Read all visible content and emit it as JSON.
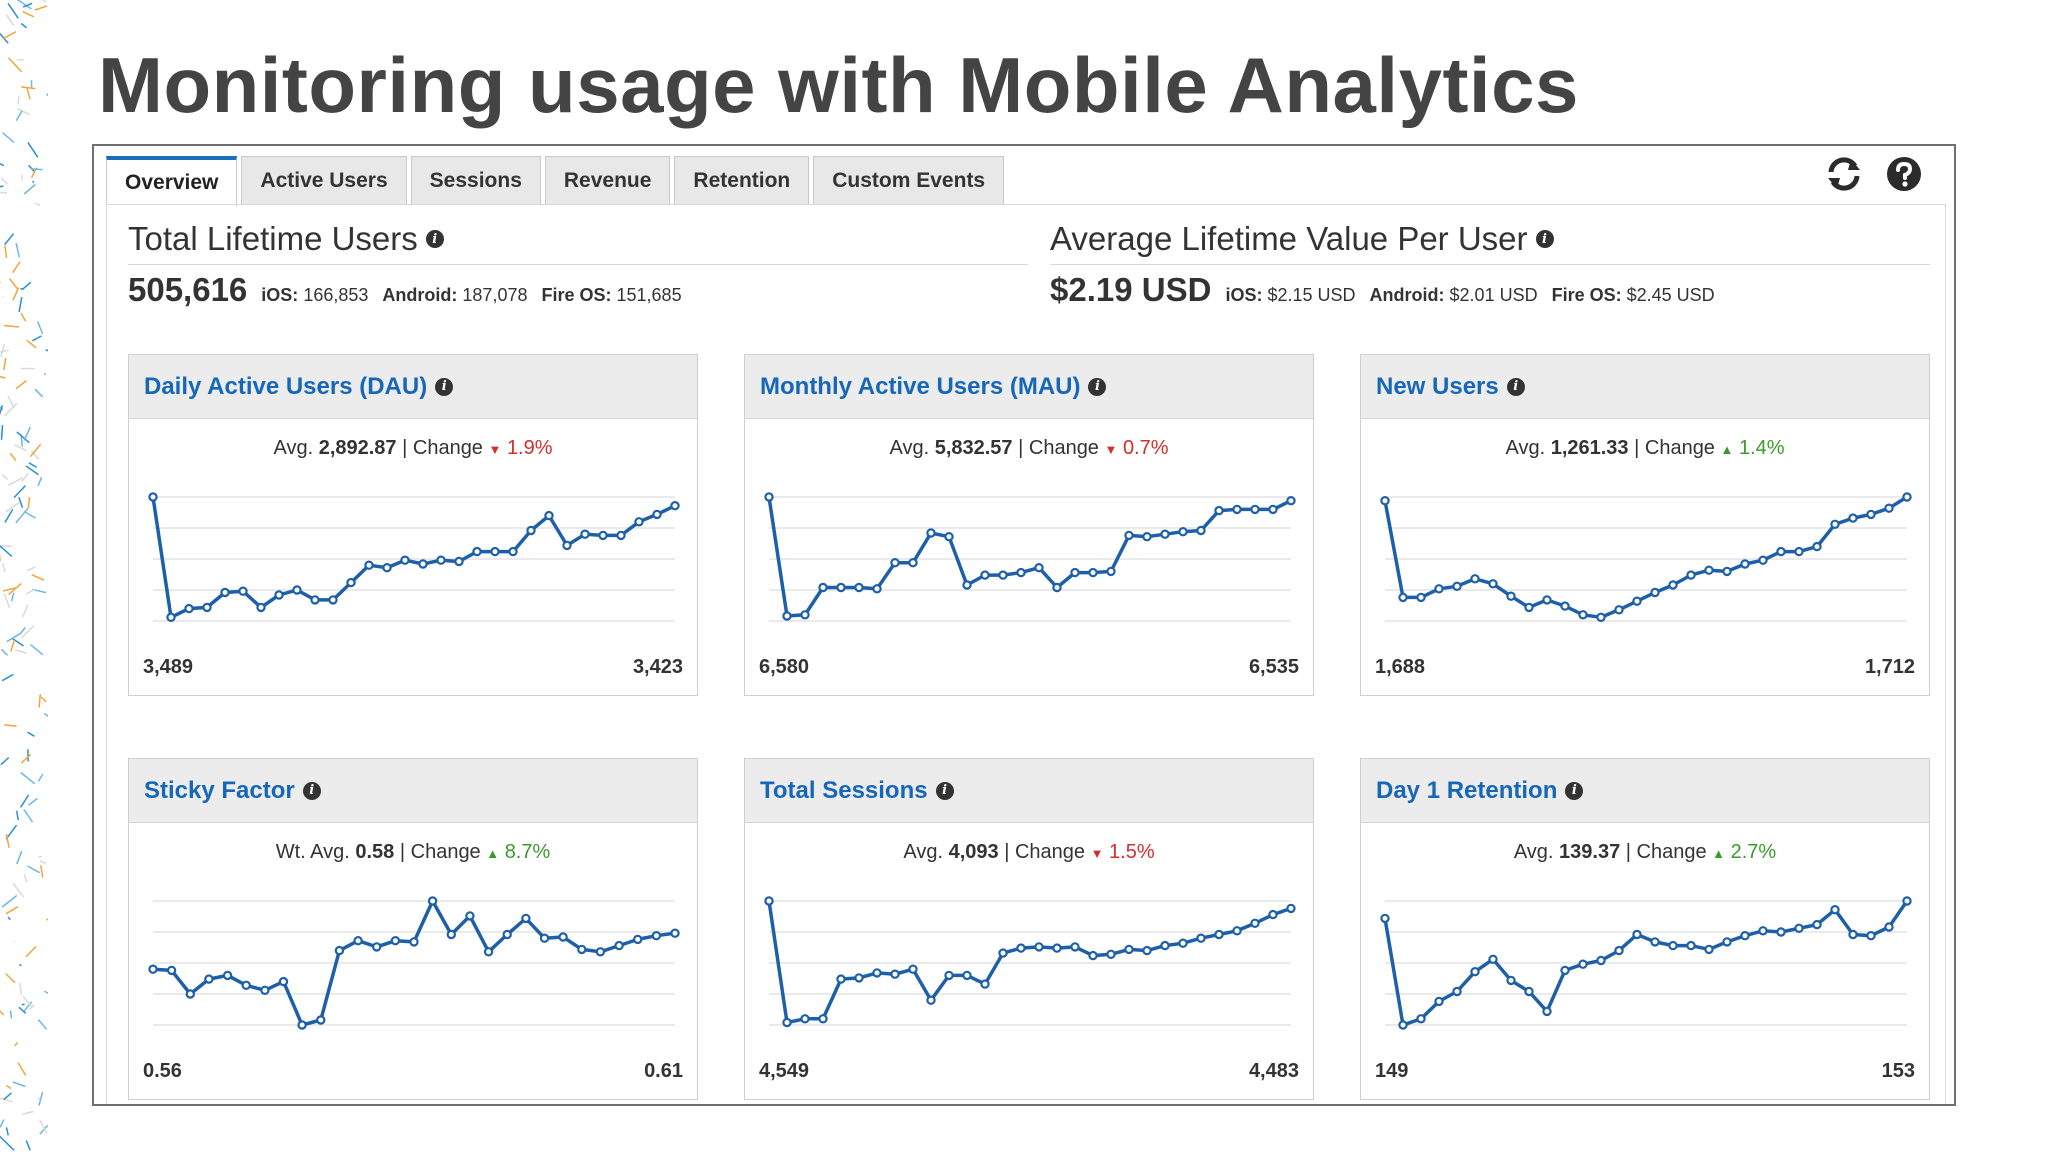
{
  "slide_title": "Monitoring usage with Mobile Analytics",
  "tabs": [
    {
      "label": "Overview",
      "active": true
    },
    {
      "label": "Active Users",
      "active": false
    },
    {
      "label": "Sessions",
      "active": false
    },
    {
      "label": "Revenue",
      "active": false
    },
    {
      "label": "Retention",
      "active": false
    },
    {
      "label": "Custom Events",
      "active": false
    }
  ],
  "icons": {
    "refresh": "refresh-icon",
    "help": "help-icon",
    "info": "info-icon"
  },
  "colors": {
    "accent": "#1a6fba",
    "link": "#1767b8",
    "up": "#3b9a2c",
    "down": "#d12e2e",
    "line": "#1d5fa8"
  },
  "summary": {
    "lifetime_users": {
      "title": "Total Lifetime Users",
      "value": "505,616",
      "ios_label": "iOS:",
      "ios_value": "166,853",
      "android_label": "Android:",
      "android_value": "187,078",
      "fire_label": "Fire OS:",
      "fire_value": "151,685"
    },
    "lifetime_value": {
      "title": "Average Lifetime Value Per User",
      "value": "$2.19 USD",
      "ios_label": "iOS:",
      "ios_value": "$2.15 USD",
      "android_label": "Android:",
      "android_value": "$2.01 USD",
      "fire_label": "Fire OS:",
      "fire_value": "$2.45 USD"
    }
  },
  "cards": [
    {
      "title": "Daily Active Users (DAU)",
      "avg_label": "Avg.",
      "avg": "2,892.87",
      "change_label": "Change",
      "direction": "down",
      "arrow": "▼",
      "change": "1.9%",
      "start": "3,489",
      "end": "3,423"
    },
    {
      "title": "Monthly Active Users (MAU)",
      "avg_label": "Avg.",
      "avg": "5,832.57",
      "change_label": "Change",
      "direction": "down",
      "arrow": "▼",
      "change": "0.7%",
      "start": "6,580",
      "end": "6,535"
    },
    {
      "title": "New Users",
      "avg_label": "Avg.",
      "avg": "1,261.33",
      "change_label": "Change",
      "direction": "up",
      "arrow": "▲",
      "change": "1.4%",
      "start": "1,688",
      "end": "1,712"
    },
    {
      "title": "Sticky Factor",
      "avg_label": "Wt. Avg.",
      "avg": "0.58",
      "change_label": "Change",
      "direction": "up",
      "arrow": "▲",
      "change": "8.7%",
      "start": "0.56",
      "end": "0.61"
    },
    {
      "title": "Total Sessions",
      "avg_label": "Avg.",
      "avg": "4,093",
      "change_label": "Change",
      "direction": "down",
      "arrow": "▼",
      "change": "1.5%",
      "start": "4,549",
      "end": "4,483"
    },
    {
      "title": "Day 1 Retention",
      "avg_label": "Avg.",
      "avg": "139.37",
      "change_label": "Change",
      "direction": "up",
      "arrow": "▲",
      "change": "2.7%",
      "start": "149",
      "end": "153"
    }
  ],
  "sparklines": [
    [
      1.0,
      0.03,
      0.1,
      0.11,
      0.23,
      0.24,
      0.11,
      0.21,
      0.25,
      0.17,
      0.17,
      0.31,
      0.45,
      0.43,
      0.49,
      0.46,
      0.49,
      0.48,
      0.56,
      0.56,
      0.56,
      0.73,
      0.85,
      0.61,
      0.7,
      0.69,
      0.69,
      0.8,
      0.86,
      0.93
    ],
    [
      1.0,
      0.04,
      0.05,
      0.27,
      0.27,
      0.27,
      0.26,
      0.47,
      0.47,
      0.71,
      0.68,
      0.29,
      0.37,
      0.37,
      0.39,
      0.43,
      0.27,
      0.39,
      0.39,
      0.4,
      0.69,
      0.68,
      0.7,
      0.72,
      0.73,
      0.89,
      0.9,
      0.9,
      0.9,
      0.97
    ],
    [
      0.97,
      0.19,
      0.19,
      0.26,
      0.28,
      0.34,
      0.3,
      0.2,
      0.11,
      0.17,
      0.12,
      0.05,
      0.03,
      0.09,
      0.16,
      0.23,
      0.29,
      0.37,
      0.41,
      0.4,
      0.46,
      0.49,
      0.56,
      0.56,
      0.6,
      0.78,
      0.83,
      0.86,
      0.91,
      1.0
    ],
    [
      0.45,
      0.44,
      0.25,
      0.37,
      0.4,
      0.32,
      0.28,
      0.35,
      0.0,
      0.04,
      0.6,
      0.68,
      0.63,
      0.68,
      0.67,
      1.0,
      0.73,
      0.88,
      0.59,
      0.73,
      0.86,
      0.7,
      0.71,
      0.61,
      0.59,
      0.64,
      0.69,
      0.72,
      0.74
    ],
    [
      1.0,
      0.02,
      0.05,
      0.05,
      0.37,
      0.38,
      0.42,
      0.41,
      0.45,
      0.2,
      0.4,
      0.4,
      0.33,
      0.58,
      0.62,
      0.63,
      0.62,
      0.63,
      0.56,
      0.57,
      0.61,
      0.6,
      0.64,
      0.66,
      0.7,
      0.73,
      0.76,
      0.82,
      0.89,
      0.94
    ],
    [
      0.86,
      0.0,
      0.05,
      0.19,
      0.27,
      0.43,
      0.53,
      0.36,
      0.27,
      0.11,
      0.44,
      0.49,
      0.52,
      0.6,
      0.73,
      0.67,
      0.64,
      0.64,
      0.61,
      0.67,
      0.72,
      0.76,
      0.75,
      0.78,
      0.81,
      0.93,
      0.73,
      0.72,
      0.79,
      1.0
    ]
  ]
}
